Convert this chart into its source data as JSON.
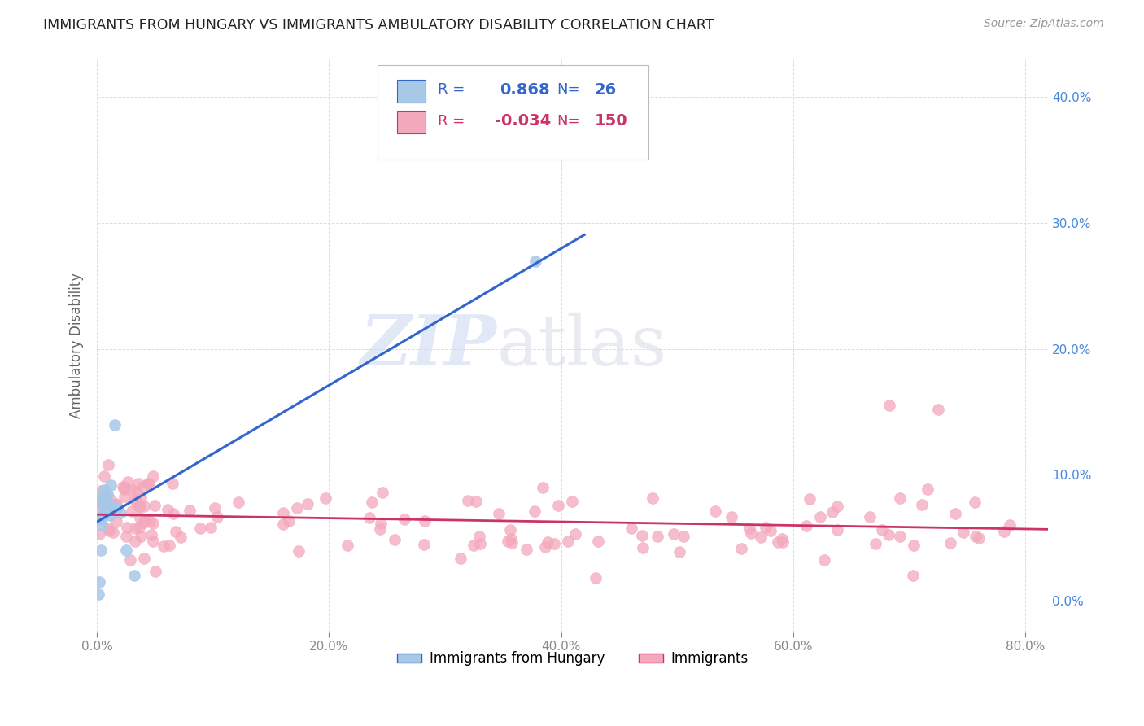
{
  "title": "IMMIGRANTS FROM HUNGARY VS IMMIGRANTS AMBULATORY DISABILITY CORRELATION CHART",
  "source": "Source: ZipAtlas.com",
  "ylabel": "Ambulatory Disability",
  "xlim": [
    0.0,
    0.82
  ],
  "ylim": [
    -0.025,
    0.43
  ],
  "r_hungary": 0.868,
  "n_hungary": 26,
  "r_immigrants": -0.034,
  "n_immigrants": 150,
  "legend_label_hungary": "Immigrants from Hungary",
  "legend_label_immigrants": "Immigrants",
  "color_hungary": "#a8c8e8",
  "color_hungary_line": "#3366cc",
  "color_immigrants": "#f4a8bb",
  "color_immigrants_line": "#cc3366",
  "color_r_hungary": "#3366cc",
  "color_r_immigrants": "#cc3366",
  "watermark_zip": "ZIP",
  "watermark_atlas": "atlas",
  "grid_color": "#dddddd",
  "tick_color": "#888888",
  "right_tick_color": "#4488dd"
}
